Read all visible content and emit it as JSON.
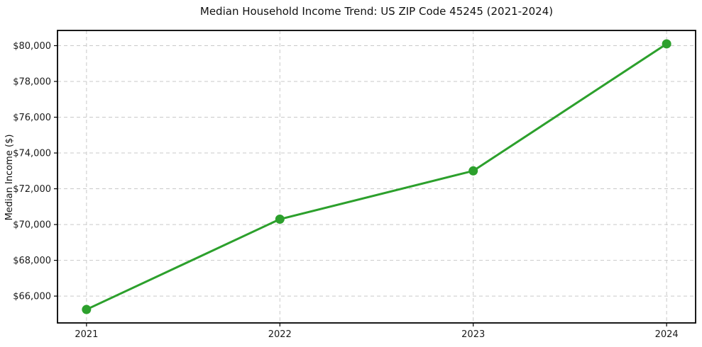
{
  "chart_data": {
    "type": "line",
    "title": "Median Household Income Trend: US ZIP Code 45245 (2021-2024)",
    "xlabel": "",
    "ylabel": "Median Income ($)",
    "x": [
      2021,
      2022,
      2023,
      2024
    ],
    "xtick_labels": [
      "2021",
      "2022",
      "2023",
      "2024"
    ],
    "series": [
      {
        "name": "Median Household Income",
        "values": [
          65250,
          70300,
          73000,
          80100
        ]
      }
    ],
    "ytick_values": [
      66000,
      68000,
      70000,
      72000,
      74000,
      76000,
      78000,
      80000
    ],
    "ytick_labels": [
      "$66,000",
      "$68,000",
      "$70,000",
      "$72,000",
      "$74,000",
      "$76,000",
      "$78,000",
      "$80,000"
    ],
    "ylim": [
      64500,
      80850
    ],
    "xlim": [
      2020.85,
      2024.15
    ],
    "grid": true,
    "grid_style": "dashed",
    "legend": "none",
    "colors": {
      "line": "#2ca02c",
      "marker": "#2ca02c",
      "grid": "#c9c9c9",
      "spine": "#000000",
      "text": "#1a1a1a",
      "background": "#ffffff"
    }
  }
}
